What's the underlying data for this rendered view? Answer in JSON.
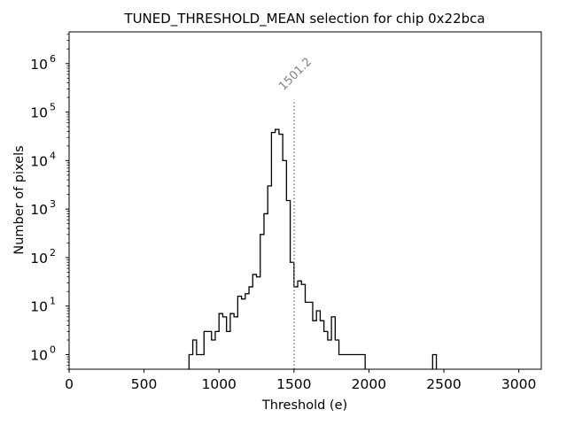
{
  "chart_data": {
    "type": "histogram",
    "title": "TUNED_THRESHOLD_MEAN selection for chip 0x22bca",
    "xlabel": "Threshold (e)",
    "ylabel": "Number of pixels",
    "xlim": [
      0,
      3150
    ],
    "ylim": [
      0.5,
      4500000
    ],
    "yscale": "log",
    "grid": false,
    "x_ticks": [
      0,
      500,
      1000,
      1500,
      2000,
      2500,
      3000
    ],
    "x_tick_labels": [
      "0",
      "500",
      "1000",
      "1500",
      "2000",
      "2500",
      "3000"
    ],
    "y_ticks": [
      1,
      10,
      100,
      1000,
      10000,
      100000,
      1000000
    ],
    "y_tick_labels": [
      {
        "base": "10",
        "exp": "0"
      },
      {
        "base": "10",
        "exp": "1"
      },
      {
        "base": "10",
        "exp": "2"
      },
      {
        "base": "10",
        "exp": "3"
      },
      {
        "base": "10",
        "exp": "4"
      },
      {
        "base": "10",
        "exp": "5"
      },
      {
        "base": "10",
        "exp": "6"
      }
    ],
    "bin_edges": [
      800,
      825,
      850,
      875,
      900,
      925,
      950,
      975,
      1000,
      1025,
      1050,
      1075,
      1100,
      1125,
      1150,
      1175,
      1200,
      1225,
      1250,
      1275,
      1300,
      1325,
      1350,
      1375,
      1400,
      1425,
      1450,
      1475,
      1500,
      1525,
      1550,
      1575,
      1600,
      1625,
      1650,
      1675,
      1700,
      1725,
      1750,
      1775,
      1800,
      1825,
      1850,
      1875,
      1900,
      1925,
      1950,
      1975,
      2000,
      2025,
      2050,
      2075,
      2100,
      2125,
      2150,
      2175,
      2200,
      2225,
      2250,
      2275,
      2300,
      2325,
      2350,
      2375,
      2400,
      2425,
      2450,
      2475
    ],
    "counts": [
      1,
      2,
      1,
      1,
      3,
      3,
      2,
      3,
      7,
      6,
      3,
      7,
      6,
      16,
      14,
      18,
      25,
      45,
      40,
      300,
      800,
      3000,
      38000,
      44000,
      35000,
      10000,
      1500,
      80,
      25,
      33,
      28,
      12,
      12,
      5,
      8,
      5,
      3,
      2,
      6,
      2,
      1,
      1,
      1,
      1,
      1,
      1,
      1,
      0,
      0,
      0,
      0,
      0,
      0,
      0,
      0,
      0,
      0,
      0,
      0,
      0,
      0,
      0,
      0,
      0,
      0,
      1,
      0
    ],
    "annotations": [
      {
        "type": "vline",
        "x": 1501.2,
        "y_top": 180000,
        "label": "1501.2",
        "color": "#808080",
        "style": "dotted"
      }
    ],
    "colors": {
      "line": "#000000",
      "annotation": "#808080"
    }
  }
}
